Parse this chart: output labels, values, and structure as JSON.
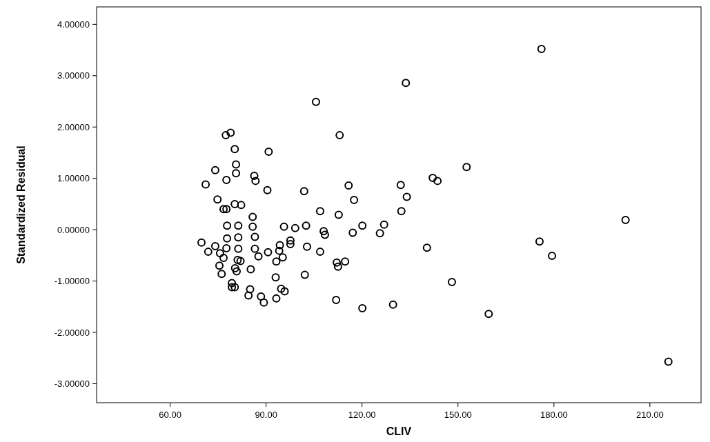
{
  "chart_data": {
    "type": "scatter",
    "xlabel": "CLIV",
    "ylabel": "Standardized Residual",
    "marker": "circle",
    "xlim": [
      37,
      226
    ],
    "ylim": [
      -3.37,
      4.34
    ],
    "xticks": [
      {
        "value": 60,
        "label": "60.00"
      },
      {
        "value": 90,
        "label": "90.00"
      },
      {
        "value": 120,
        "label": "120.00"
      },
      {
        "value": 150,
        "label": "150.00"
      },
      {
        "value": 180,
        "label": "180.00"
      },
      {
        "value": 210,
        "label": "210.00"
      }
    ],
    "yticks": [
      {
        "value": -3,
        "label": "-3.00000"
      },
      {
        "value": -2,
        "label": "-2.00000"
      },
      {
        "value": -1,
        "label": "-1.00000"
      },
      {
        "value": 0,
        "label": "0.00000"
      },
      {
        "value": 1,
        "label": "1.00000"
      },
      {
        "value": 2,
        "label": "2.00000"
      },
      {
        "value": 3,
        "label": "3.00000"
      },
      {
        "value": 4,
        "label": "4.00000"
      }
    ],
    "series": [
      {
        "color": "#000000",
        "x": [
          176.1,
          133.7,
          105.6,
          113.0,
          78.9,
          77.4,
          80.2,
          90.8,
          80.6,
          74.1,
          80.6,
          86.3,
          86.7,
          77.6,
          152.7,
          142.1,
          143.6,
          71.1,
          90.4,
          101.9,
          115.8,
          117.5,
          132.1,
          134.0,
          132.3,
          74.8,
          80.2,
          82.2,
          76.7,
          77.6,
          106.9,
          112.7,
          85.8,
          77.8,
          81.3,
          85.8,
          95.6,
          99.1,
          102.5,
          108.0,
          108.4,
          120.1,
          126.9,
          125.6,
          117.1,
          202.4,
          69.8,
          71.9,
          74.1,
          75.6,
          77.8,
          81.3,
          77.6,
          76.7,
          81.3,
          86.5,
          86.5,
          94.3,
          94.1,
          95.2,
          90.6,
          97.6,
          97.6,
          102.8,
          106.9,
          140.3,
          81.1,
          82.0,
          87.6,
          85.2,
          80.8,
          80.3,
          75.4,
          76.1,
          93.2,
          93.0,
          102.1,
          112.1,
          112.5,
          114.7,
          148.1,
          175.5,
          179.4,
          79.3,
          79.3,
          80.2,
          85.0,
          94.7,
          95.8,
          84.5,
          88.4,
          93.2,
          89.3,
          111.9,
          120.1,
          129.7,
          159.6,
          215.8
        ],
        "values": [
          3.52,
          2.86,
          2.49,
          1.84,
          1.89,
          1.84,
          1.57,
          1.52,
          1.27,
          1.16,
          1.1,
          1.05,
          0.95,
          0.97,
          1.22,
          1.01,
          0.95,
          0.88,
          0.77,
          0.75,
          0.86,
          0.58,
          0.87,
          0.64,
          0.36,
          0.59,
          0.5,
          0.48,
          0.4,
          0.4,
          0.36,
          0.29,
          0.25,
          0.08,
          0.08,
          0.06,
          0.06,
          0.03,
          0.08,
          -0.03,
          -0.1,
          0.08,
          0.1,
          -0.07,
          -0.06,
          0.19,
          -0.25,
          -0.43,
          -0.32,
          -0.46,
          -0.17,
          -0.15,
          -0.36,
          -0.55,
          -0.37,
          -0.14,
          -0.37,
          -0.3,
          -0.41,
          -0.54,
          -0.44,
          -0.21,
          -0.28,
          -0.33,
          -0.43,
          -0.35,
          -0.59,
          -0.61,
          -0.52,
          -0.77,
          -0.81,
          -0.75,
          -0.7,
          -0.86,
          -0.62,
          -0.93,
          -0.88,
          -0.64,
          -0.72,
          -0.62,
          -1.02,
          -0.23,
          -0.51,
          -1.04,
          -1.12,
          -1.12,
          -1.16,
          -1.15,
          -1.2,
          -1.28,
          -1.3,
          -1.34,
          -1.42,
          -1.37,
          -1.53,
          -1.46,
          -1.64,
          -2.57
        ]
      }
    ]
  }
}
